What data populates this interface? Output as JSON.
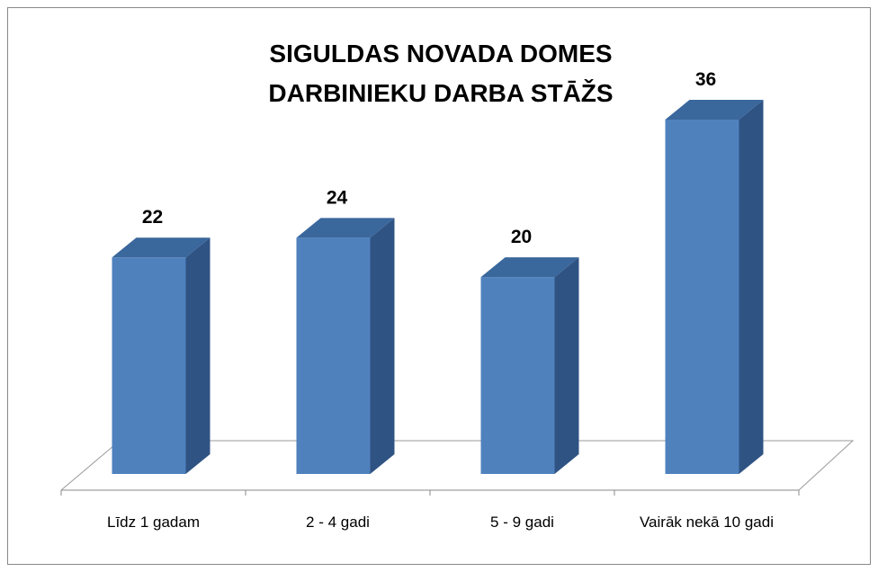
{
  "chart_data": {
    "type": "bar3d",
    "title": "SIGULDAS NOVADA DOMES DARBINIEKU DARBA STĀŽS",
    "categories": [
      "Līdz 1 gadam",
      "2 - 4 gadi",
      "5 - 9 gadi",
      "Vairāk nekā 10 gadi"
    ],
    "values": [
      22,
      24,
      20,
      36
    ],
    "color": "#4f81bd"
  }
}
